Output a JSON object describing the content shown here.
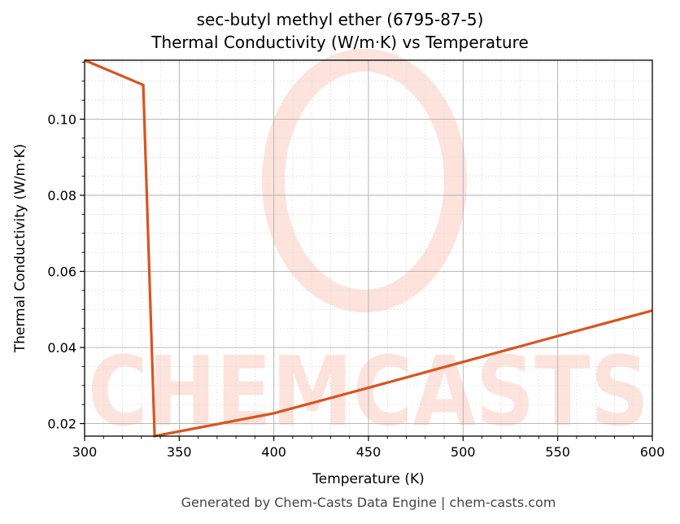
{
  "chart": {
    "title_line1": "sec-butyl methyl ether (6795-87-5)",
    "title_line2": "Thermal Conductivity (W/m·K) vs Temperature",
    "footer": "Generated by Chem-Casts Data Engine | chem-casts.com",
    "watermark": "CHEMCASTS",
    "line_color": "#d9541e",
    "watermark_color": "#fde3dc"
  },
  "chart_data": {
    "type": "line",
    "title": "sec-butyl methyl ether (6795-87-5) Thermal Conductivity (W/m·K) vs Temperature",
    "xlabel": "Temperature (K)",
    "ylabel": "Thermal Conductivity (W/m·K)",
    "xlim": [
      300,
      600
    ],
    "ylim": [
      0.0167,
      0.1155
    ],
    "xticks": [
      300,
      350,
      400,
      450,
      500,
      550,
      600
    ],
    "xtick_labels": [
      "300",
      "350",
      "400",
      "450",
      "500",
      "550",
      "600"
    ],
    "yticks": [
      0.02,
      0.04,
      0.06,
      0.08,
      0.1
    ],
    "ytick_labels": [
      "0.02",
      "0.04",
      "0.06",
      "0.08",
      "0.10"
    ],
    "grid": true,
    "legend": null,
    "series": [
      {
        "name": "Thermal Conductivity",
        "x": [
          300,
          331,
          337,
          400,
          450,
          500,
          550,
          600
        ],
        "y": [
          0.1155,
          0.109,
          0.0167,
          0.0227,
          0.0294,
          0.0362,
          0.043,
          0.0497
        ]
      }
    ]
  }
}
